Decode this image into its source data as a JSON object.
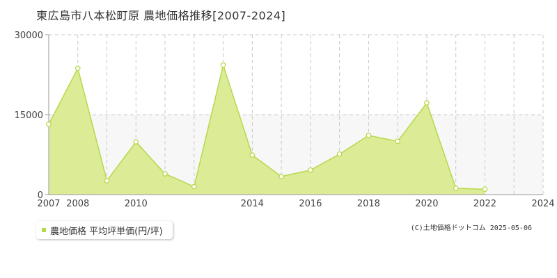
{
  "chart_data": {
    "type": "area",
    "title": "東広島市八本松町原 農地価格推移[2007-2024]",
    "xlabel": "",
    "ylabel": "",
    "x": [
      2007,
      2008,
      2009,
      2010,
      2011,
      2012,
      2013,
      2014,
      2015,
      2016,
      2017,
      2018,
      2019,
      2020,
      2021,
      2022,
      2023,
      2024
    ],
    "series": [
      {
        "name": "農地価格 平均坪単価(円/坪)",
        "values": [
          13200,
          23700,
          2600,
          9900,
          3900,
          1500,
          24300,
          7400,
          3400,
          4600,
          7600,
          11100,
          10000,
          17200,
          1200,
          1000,
          null,
          null
        ]
      }
    ],
    "xlim": [
      2007,
      2024
    ],
    "ylim": [
      0,
      30000
    ],
    "y_ticks": [
      "0",
      "15000",
      "30000"
    ],
    "x_ticks": [
      "2007",
      "2008",
      "2010",
      "2014",
      "2016",
      "2018",
      "2020",
      "2022",
      "2024"
    ],
    "grid": true,
    "legend_position": "bottom-left",
    "colors": {
      "fill": "#dbeb96",
      "line": "#b6d94a",
      "marker_fill": "#ffffff",
      "grid": "#c8c8c8",
      "band": "#f7f7f7",
      "legend_swatch": "#b6d94a"
    }
  },
  "credit": "(C)土地価格ドットコム 2025-05-06"
}
